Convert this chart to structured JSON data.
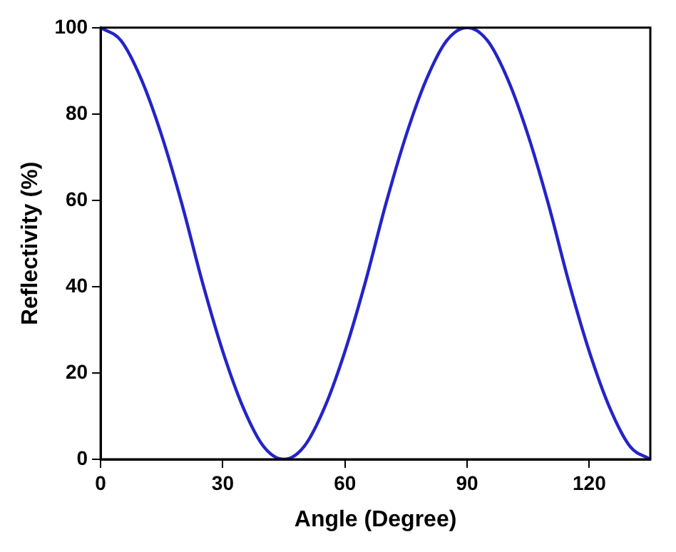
{
  "chart_data": {
    "type": "line",
    "xlabel": "Angle (Degree)",
    "ylabel": "Reflectivity (%)",
    "x": [
      0,
      5,
      10,
      15,
      20,
      25,
      30,
      35,
      40,
      45,
      50,
      55,
      60,
      65,
      70,
      75,
      80,
      85,
      90,
      95,
      100,
      105,
      110,
      115,
      120,
      125,
      130,
      135
    ],
    "series": [
      {
        "color": "#2424c8",
        "values": [
          100,
          97,
          88,
          75,
          59,
          41,
          25,
          12,
          3,
          0,
          3,
          12,
          25,
          41,
          59,
          75,
          88,
          97,
          100,
          97,
          88,
          75,
          59,
          41,
          25,
          12,
          3,
          0
        ]
      }
    ],
    "xlim": [
      0,
      135
    ],
    "xticks": [
      0,
      30,
      60,
      90,
      120
    ],
    "ylim": [
      0,
      100
    ],
    "yticks": [
      0,
      20,
      40,
      60,
      80,
      100
    ],
    "grid": false,
    "legend": false,
    "marker": "none",
    "line_style": "solid"
  }
}
